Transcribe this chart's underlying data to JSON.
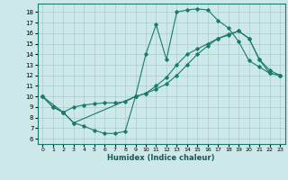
{
  "xlabel": "Humidex (Indice chaleur)",
  "bg_color": "#cce8e8",
  "grid_color": "#aacccc",
  "line_color": "#1a7a6e",
  "xlim": [
    -0.5,
    23.5
  ],
  "ylim": [
    5.5,
    18.8
  ],
  "xticks": [
    0,
    1,
    2,
    3,
    4,
    5,
    6,
    7,
    8,
    9,
    10,
    11,
    12,
    13,
    14,
    15,
    16,
    17,
    18,
    19,
    20,
    21,
    22,
    23
  ],
  "yticks": [
    6,
    7,
    8,
    9,
    10,
    11,
    12,
    13,
    14,
    15,
    16,
    17,
    18
  ],
  "line1_x": [
    0,
    1,
    2,
    3,
    4,
    5,
    6,
    7,
    8,
    9,
    10,
    11,
    12,
    13,
    14,
    15,
    16,
    17,
    18,
    19,
    20,
    21,
    22,
    23
  ],
  "line1_y": [
    10,
    9,
    8.5,
    7.5,
    7.2,
    6.8,
    6.5,
    6.5,
    6.7,
    10.0,
    14.0,
    16.8,
    13.5,
    18.0,
    18.2,
    18.3,
    18.2,
    17.2,
    16.5,
    15.2,
    13.4,
    12.8,
    12.2,
    12.0
  ],
  "line2_x": [
    0,
    1,
    2,
    3,
    4,
    5,
    6,
    7,
    8,
    9,
    10,
    11,
    12,
    13,
    14,
    15,
    16,
    17,
    18,
    19,
    20,
    21,
    22,
    23
  ],
  "line2_y": [
    10,
    9,
    8.5,
    9.0,
    9.2,
    9.3,
    9.4,
    9.4,
    9.5,
    10.0,
    10.3,
    10.7,
    11.2,
    12.0,
    13.0,
    14.0,
    14.8,
    15.5,
    15.9,
    16.2,
    15.5,
    13.5,
    12.5,
    12.0
  ],
  "line3_x": [
    0,
    2,
    3,
    9,
    10,
    11,
    12,
    13,
    14,
    15,
    16,
    17,
    18,
    19,
    20,
    21,
    22,
    23
  ],
  "line3_y": [
    10,
    8.5,
    7.5,
    10.0,
    10.3,
    11.0,
    11.8,
    13.0,
    14.0,
    14.5,
    15.0,
    15.5,
    15.8,
    16.2,
    15.5,
    13.5,
    12.2,
    12.0
  ]
}
